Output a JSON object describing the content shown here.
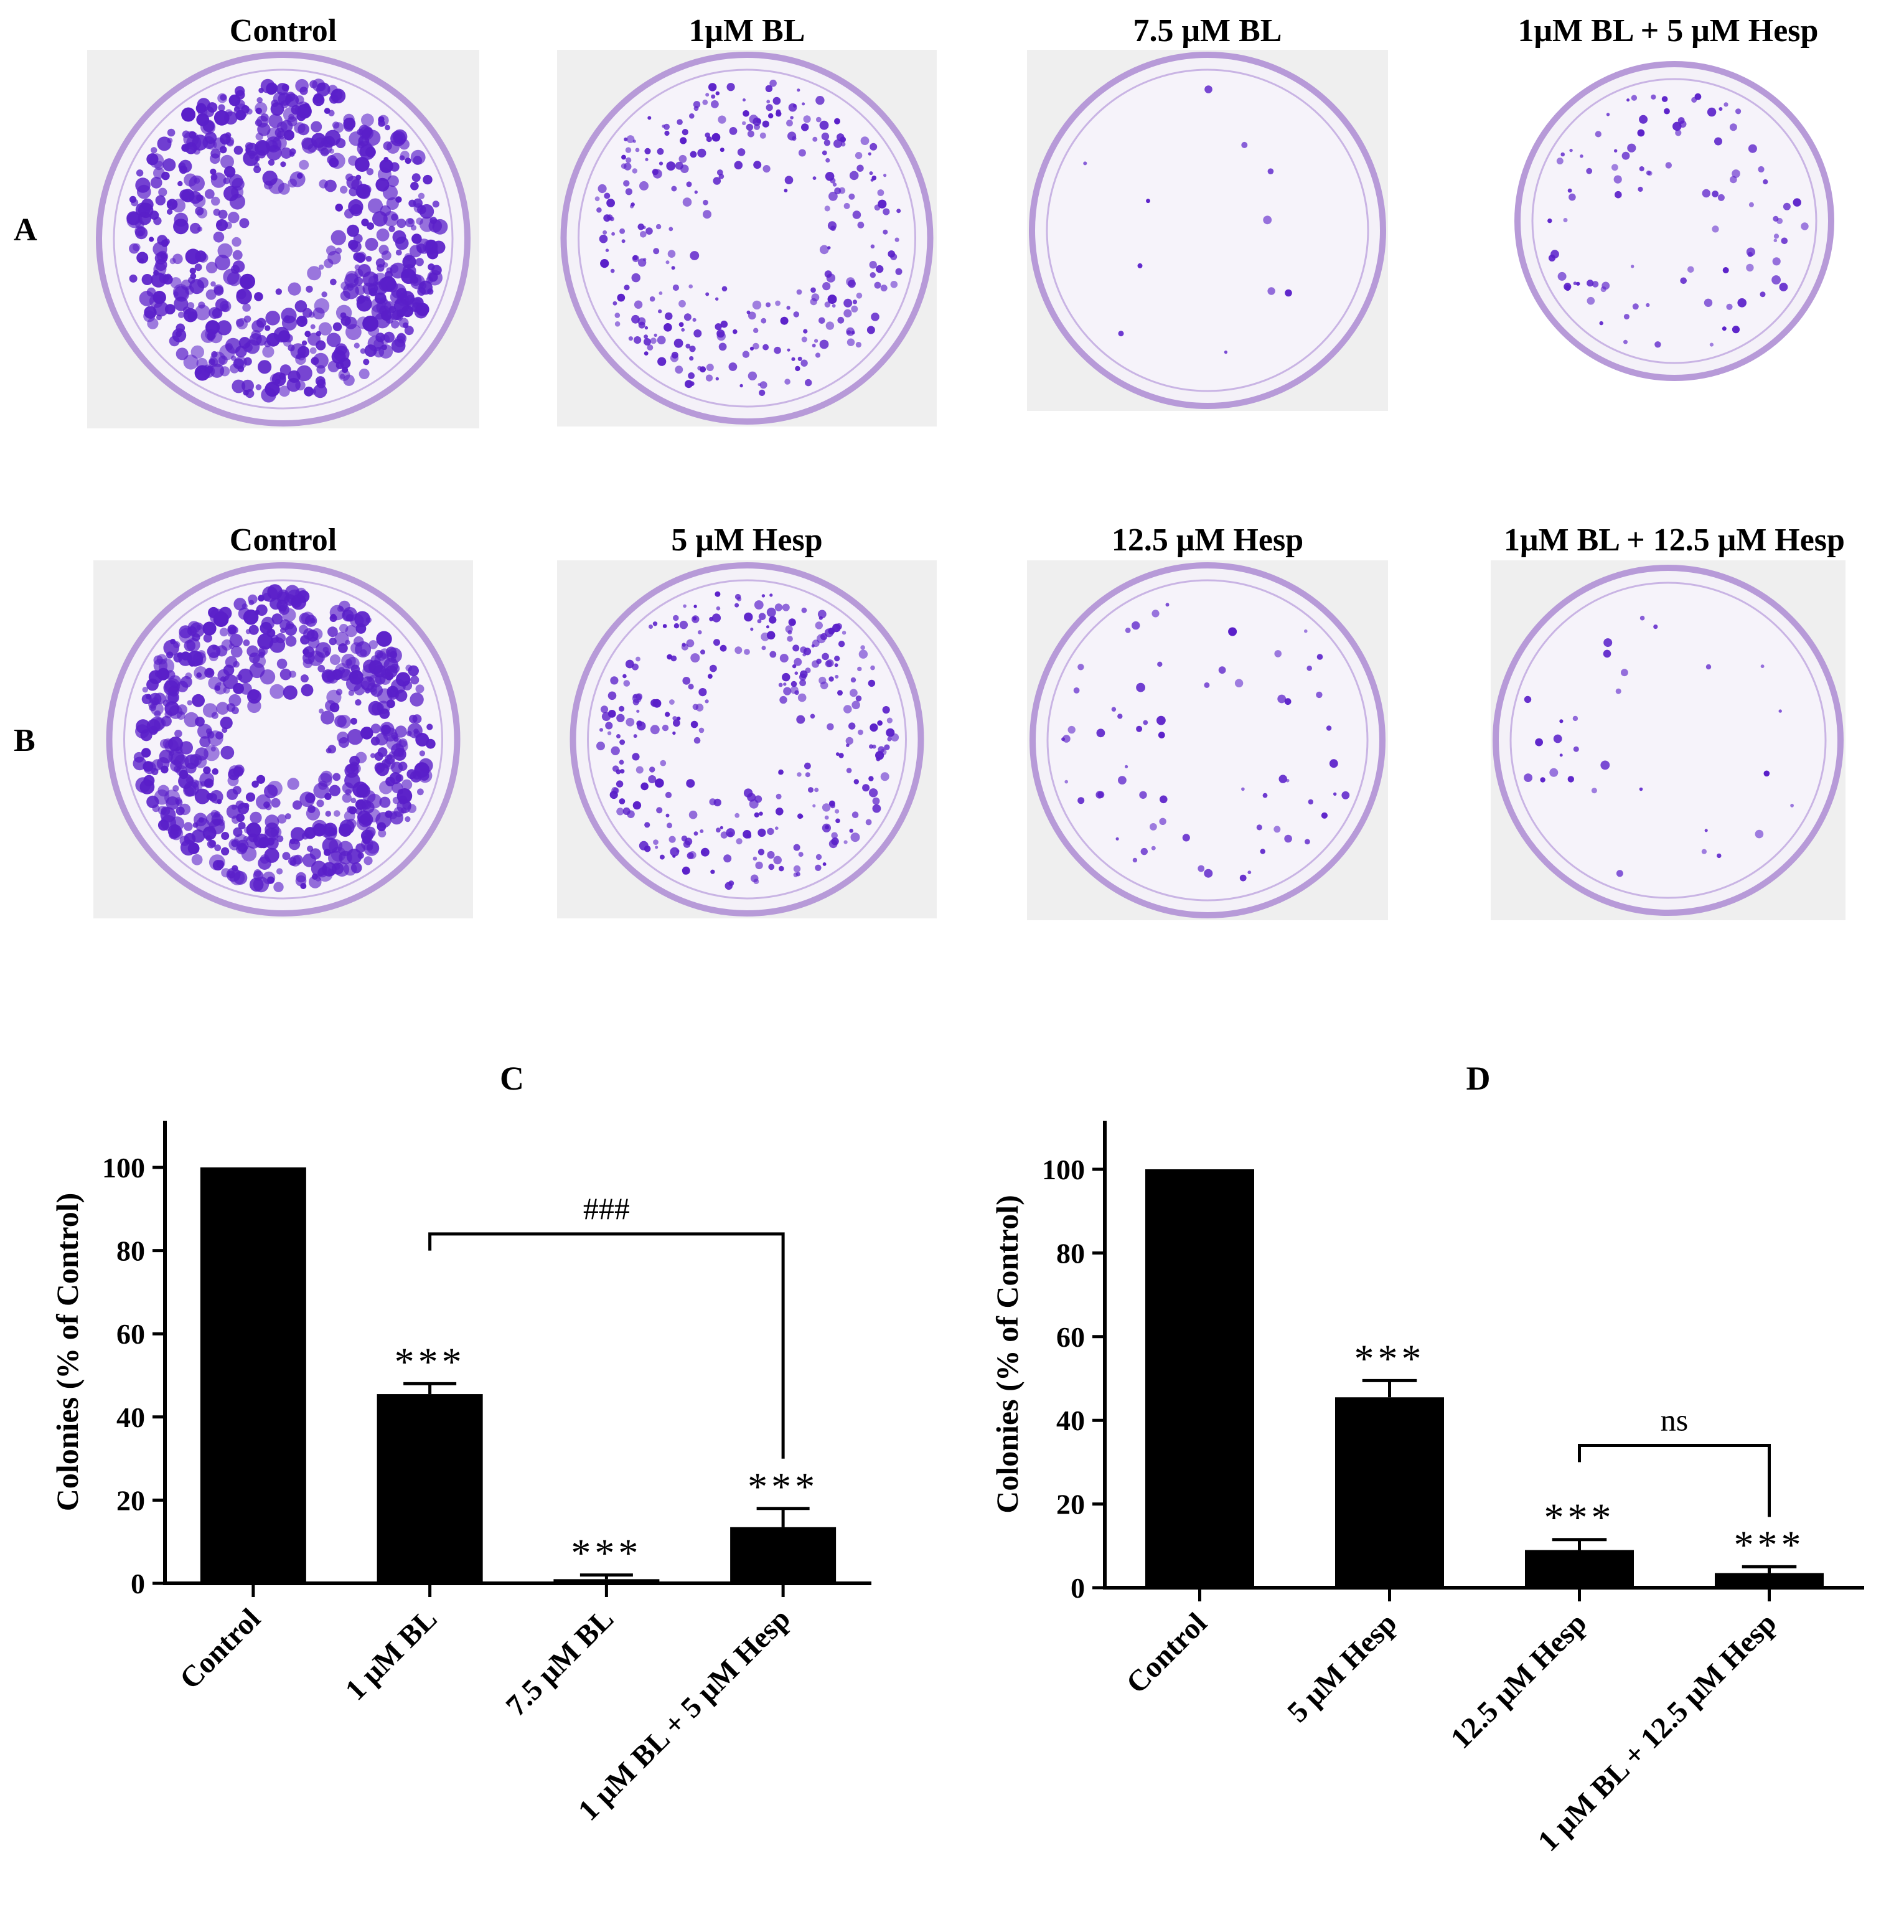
{
  "figure": {
    "row_labels": {
      "a": "A",
      "b": "B"
    },
    "row_a_titles": [
      "Control",
      "1μM BL",
      "7.5 μM BL",
      "1μM BL + 5 μM Hesp"
    ],
    "row_b_titles": [
      "Control",
      "5 μM Hesp",
      "12.5 μM Hesp",
      "1μM BL + 12.5 μM Hesp"
    ],
    "dish_colony_density": {
      "row_a": [
        1.0,
        0.46,
        0.01,
        0.14
      ],
      "row_b": [
        1.0,
        0.46,
        0.09,
        0.04
      ]
    },
    "colors": {
      "stain": "#5a1fc9",
      "plate_rim": "#b79ad8",
      "plate_bg": "#efefef",
      "bar": "#000000"
    }
  },
  "chart_data": [
    {
      "type": "bar",
      "panel_label": "C",
      "ylabel": "Colonies (% of Control)",
      "ylim": [
        0,
        110
      ],
      "yticks": [
        0,
        20,
        40,
        60,
        80,
        100
      ],
      "categories": [
        "Control",
        "1 μM BL",
        "7.5 μM BL",
        "1 μM BL + 5 μM Hesp"
      ],
      "values": [
        100,
        45.5,
        1,
        13.5
      ],
      "errors": [
        0,
        2.5,
        1,
        4.5
      ],
      "annotations": [
        "",
        "***",
        "***",
        "***"
      ],
      "comparison": {
        "from": 1,
        "to": 3,
        "label": "###",
        "y": 84
      }
    },
    {
      "type": "bar",
      "panel_label": "D",
      "ylabel": "Colonies (% of Control)",
      "ylim": [
        0,
        110
      ],
      "yticks": [
        0,
        20,
        40,
        60,
        80,
        100
      ],
      "categories": [
        "Control",
        "5 μM Hesp",
        "12.5 μM Hesp",
        "1 μM BL + 12.5 μM Hesp"
      ],
      "values": [
        100,
        45.5,
        9,
        3.5
      ],
      "errors": [
        0,
        4,
        2.5,
        1.5
      ],
      "annotations": [
        "",
        "***",
        "***",
        "***"
      ],
      "comparison": {
        "from": 2,
        "to": 3,
        "label": "ns",
        "y": 34
      }
    }
  ]
}
